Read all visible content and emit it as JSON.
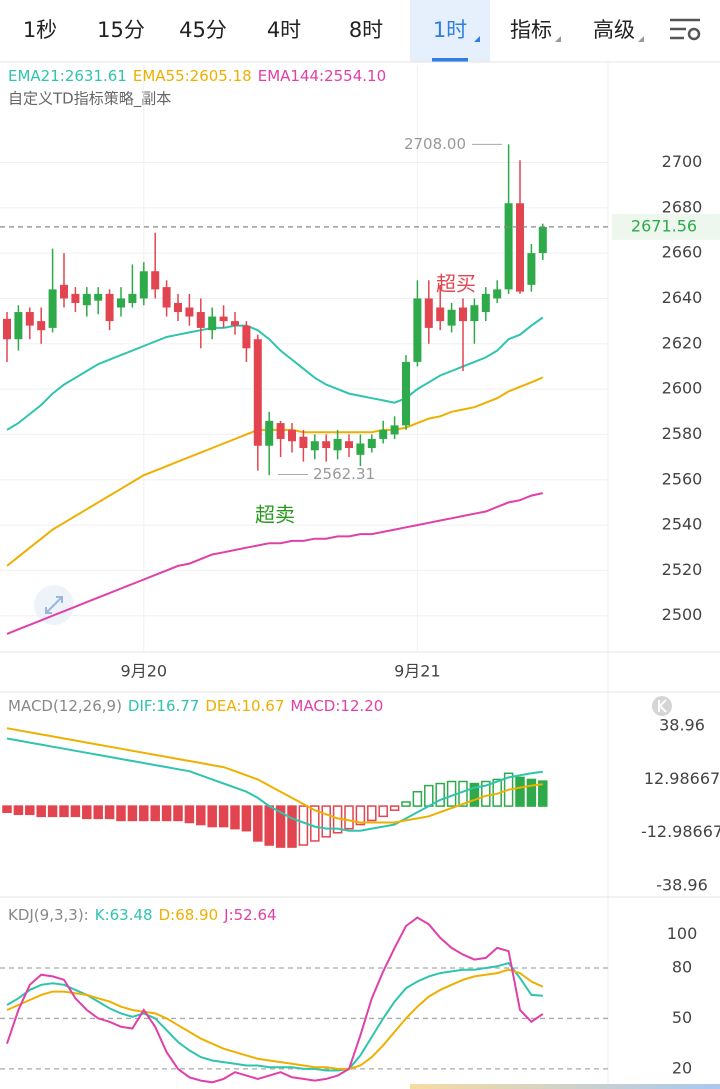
{
  "toolbar": {
    "tabs": [
      "1秒",
      "15分",
      "45分",
      "4时",
      "8时",
      "1时",
      "指标",
      "高级"
    ],
    "active": 5,
    "dropdowns": [
      5,
      6,
      7
    ]
  },
  "chart_data": [
    {
      "type": "candlestick",
      "subtitle": "自定义TD指标策略_副本",
      "categories": [
        null,
        null,
        null,
        null,
        null,
        null,
        null,
        null,
        null,
        null,
        null,
        null,
        "9月20",
        null,
        null,
        null,
        null,
        null,
        null,
        null,
        null,
        null,
        null,
        null,
        null,
        null,
        null,
        null,
        null,
        null,
        null,
        null,
        null,
        null,
        null,
        null,
        "9月21",
        null,
        null,
        null,
        null,
        null,
        null,
        null,
        null,
        null,
        null,
        null
      ],
      "open": [
        2631,
        2622,
        2634,
        2630,
        2627,
        2646,
        2642,
        2637,
        2639,
        2642,
        2636,
        2638,
        2640,
        2652,
        2645,
        2638,
        2636,
        2634,
        2626,
        2632,
        2630,
        2628,
        2622,
        2575,
        2585,
        2582,
        2579,
        2573,
        2577,
        2573,
        2577,
        2571,
        2574,
        2578,
        2580,
        2584,
        2612,
        2640,
        2636,
        2628,
        2636,
        2630,
        2634,
        2640,
        2644,
        2682,
        2646,
        2660
      ],
      "high": [
        2634,
        2637,
        2636,
        2636,
        2662,
        2660,
        2645,
        2645,
        2645,
        2644,
        2645,
        2655,
        2656,
        2669,
        2648,
        2642,
        2642,
        2640,
        2636,
        2637,
        2634,
        2630,
        2624,
        2590,
        2586,
        2585,
        2582,
        2580,
        2580,
        2582,
        2580,
        2580,
        2580,
        2586,
        2588,
        2615,
        2648,
        2648,
        2646,
        2638,
        2640,
        2640,
        2645,
        2648,
        2708,
        2701,
        2664,
        2673
      ],
      "low": [
        2612,
        2617,
        2622,
        2620,
        2625,
        2636,
        2634,
        2632,
        2633,
        2626,
        2632,
        2636,
        2637,
        2640,
        2632,
        2630,
        2628,
        2618,
        2622,
        2627,
        2624,
        2612,
        2564,
        2562,
        2570,
        2572,
        2568,
        2569,
        2568,
        2569,
        2570,
        2566,
        2572,
        2576,
        2578,
        2582,
        2610,
        2620,
        2626,
        2625,
        2608,
        2620,
        2630,
        2638,
        2642,
        2642,
        2643,
        2657
      ],
      "close": [
        2622,
        2634,
        2628,
        2626,
        2644,
        2640,
        2638,
        2642,
        2642,
        2630,
        2640,
        2642,
        2652,
        2644,
        2636,
        2634,
        2632,
        2627,
        2632,
        2630,
        2628,
        2618,
        2575,
        2586,
        2578,
        2577,
        2574,
        2577,
        2574,
        2578,
        2574,
        2576,
        2578,
        2582,
        2584,
        2612,
        2640,
        2627,
        2630,
        2635,
        2630,
        2637,
        2642,
        2644,
        2682,
        2643,
        2660,
        2671.56
      ],
      "up_color": "#2eaa4a",
      "down_color": "#e2454f",
      "series": [
        {
          "name": "EMA21:2631.61",
          "color": "#2fc4ae",
          "values": [
            2582,
            2585,
            2589,
            2593,
            2598,
            2602,
            2605,
            2608,
            2611,
            2613,
            2615,
            2617,
            2619,
            2621,
            2623,
            2624,
            2625,
            2626,
            2627,
            2627,
            2628,
            2628,
            2626,
            2622,
            2617,
            2613,
            2609,
            2605,
            2602,
            2600,
            2598,
            2597,
            2596,
            2595,
            2594,
            2596,
            2600,
            2603,
            2606,
            2608,
            2610,
            2612,
            2614,
            2617,
            2622,
            2624,
            2628,
            2631.61
          ]
        },
        {
          "name": "EMA55:2605.18",
          "color": "#eeb000",
          "values": [
            2522,
            2526,
            2530,
            2534,
            2538,
            2541,
            2544,
            2547,
            2550,
            2553,
            2556,
            2559,
            2562,
            2564,
            2566,
            2568,
            2570,
            2572,
            2574,
            2576,
            2578,
            2580,
            2582,
            2582,
            2582,
            2582,
            2581,
            2581,
            2581,
            2581,
            2581,
            2581,
            2581,
            2582,
            2582,
            2583,
            2585,
            2587,
            2588,
            2590,
            2591,
            2592,
            2594,
            2596,
            2599,
            2601,
            2603,
            2605.18
          ]
        },
        {
          "name": "EMA144:2554.10",
          "color": "#e040a8",
          "values": [
            2492,
            2494,
            2496,
            2498,
            2500,
            2502,
            2504,
            2506,
            2508,
            2510,
            2512,
            2514,
            2516,
            2518,
            2520,
            2522,
            2523,
            2525,
            2527,
            2528,
            2529,
            2530,
            2531,
            2532,
            2532,
            2533,
            2533,
            2534,
            2534,
            2535,
            2535,
            2536,
            2536,
            2537,
            2538,
            2539,
            2540,
            2541,
            2542,
            2543,
            2544,
            2545,
            2546,
            2548,
            2550,
            2551,
            2553,
            2554.1
          ]
        }
      ],
      "ylim": [
        2484,
        2743
      ],
      "yticks": [
        2500,
        2520,
        2540,
        2560,
        2580,
        2600,
        2620,
        2640,
        2660,
        2680,
        2700
      ],
      "grid": true,
      "current_price": 2671.56,
      "annotations": [
        {
          "text": "2708.00",
          "value": 2708
        },
        {
          "text": "2562.31",
          "value": 2562.31
        }
      ],
      "signals": [
        {
          "text": "超买",
          "color": "#e2454f"
        },
        {
          "text": "超卖",
          "color": "#2a9a1e"
        }
      ]
    },
    {
      "type": "macd",
      "title": "MACD(12,26,9)",
      "up_color": "#2eaa4a",
      "down_color": "#e2454f",
      "series": [
        {
          "name": "DIF:16.77",
          "color": "#2fc4ae",
          "values": [
            33,
            32,
            31,
            30,
            29,
            28,
            27,
            26,
            25,
            24,
            23,
            22,
            21,
            20,
            19,
            18,
            17,
            15,
            13,
            11,
            9,
            7,
            4,
            0,
            -3,
            -6,
            -8,
            -10,
            -11,
            -11,
            -12,
            -12,
            -11,
            -10,
            -9,
            -6,
            -3,
            0,
            3,
            5,
            7,
            9,
            10,
            12,
            14,
            15,
            16,
            16.77
          ]
        },
        {
          "name": "DEA:10.67",
          "color": "#eeb000",
          "values": [
            38,
            37,
            36,
            35,
            34,
            33,
            32,
            31,
            30,
            29,
            28,
            27,
            26,
            25,
            24,
            23,
            22,
            21,
            20,
            19,
            17,
            15,
            13,
            10,
            7,
            4,
            1,
            -2,
            -4,
            -6,
            -7,
            -8,
            -8,
            -8,
            -8,
            -7,
            -6,
            -5,
            -3,
            -1,
            1,
            3,
            5,
            6,
            8,
            9,
            10,
            10.67
          ]
        },
        {
          "name": "MACD:12.20",
          "color": "#e040a8",
          "style": "bar",
          "values": [
            -3,
            -4,
            -4,
            -5,
            -5,
            -5,
            -5,
            -6,
            -6,
            -6,
            -7,
            -7,
            -7,
            -7,
            -7,
            -7,
            -8,
            -9,
            -10,
            -10,
            -11,
            -12,
            -17,
            -19,
            -20,
            -20,
            -19,
            -17,
            -15,
            -13,
            -11,
            -9,
            -7,
            -5,
            -2,
            2,
            7,
            10,
            11,
            12,
            12,
            11,
            12,
            13,
            16,
            14,
            13,
            12.2
          ]
        }
      ],
      "ylim": [
        -42.4,
        54.2
      ],
      "yticks": [
        -38.96,
        -12.98667,
        12.98667,
        38.96
      ],
      "grid": false
    },
    {
      "type": "line",
      "title": "KDJ(9,3,3):",
      "series": [
        {
          "name": "K:63.48",
          "color": "#2fc4ae",
          "values": [
            58,
            62,
            67,
            70,
            71,
            70,
            67,
            64,
            60,
            56,
            53,
            51,
            53,
            50,
            43,
            36,
            31,
            27,
            25,
            24,
            23,
            22,
            22,
            21,
            21,
            21,
            20,
            20,
            19,
            19,
            20,
            28,
            39,
            50,
            60,
            68,
            72,
            75,
            77,
            78,
            79,
            79,
            80,
            81,
            83,
            74,
            64,
            63.48
          ]
        },
        {
          "name": "D:68.90",
          "color": "#eeb000",
          "values": [
            55,
            58,
            61,
            64,
            66,
            66,
            65,
            64,
            62,
            60,
            57,
            55,
            54,
            53,
            50,
            46,
            42,
            38,
            35,
            32,
            30,
            28,
            26,
            25,
            24,
            23,
            22,
            21,
            21,
            20,
            20,
            22,
            27,
            34,
            42,
            50,
            57,
            63,
            67,
            70,
            73,
            75,
            76,
            77,
            79,
            77,
            72,
            68.9
          ]
        },
        {
          "name": "J:52.64",
          "color": "#e040a8",
          "values": [
            35,
            55,
            70,
            76,
            75,
            73,
            62,
            55,
            50,
            48,
            45,
            44,
            55,
            45,
            30,
            20,
            15,
            13,
            12,
            14,
            18,
            16,
            14,
            16,
            18,
            15,
            14,
            13,
            14,
            16,
            20,
            40,
            62,
            78,
            92,
            105,
            110,
            106,
            98,
            92,
            88,
            85,
            86,
            92,
            90,
            55,
            48,
            52.64
          ]
        }
      ],
      "ylim": [
        10.4,
        117.5
      ],
      "yticks": [
        20,
        50,
        80,
        100
      ],
      "grid": false,
      "reference_lines": [
        20,
        50,
        80
      ]
    }
  ]
}
